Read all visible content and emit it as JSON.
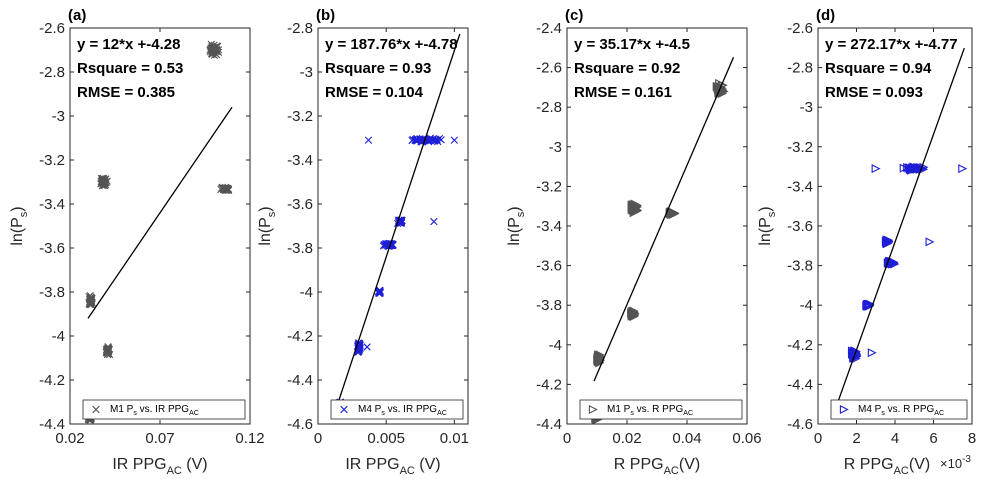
{
  "chart_data": [
    {
      "type": "scatter",
      "panel": "(a)",
      "xlabel": "IR PPG",
      "xlabel_sub": "AC",
      "xlabel_tail": " (V)",
      "ylabel": "ln(P",
      "ylabel_sub": "s",
      "ylabel_tail": ")",
      "xlim": [
        0.02,
        0.12
      ],
      "ylim": [
        -4.4,
        -2.6
      ],
      "xticks": [
        0.02,
        0.07,
        0.12
      ],
      "xtick_labels": [
        "0.02",
        "0.07",
        "0.12"
      ],
      "yticks": [
        -4.4,
        -4.2,
        -4.0,
        -3.8,
        -3.6,
        -3.4,
        -3.2,
        -3.0,
        -2.8,
        -2.6
      ],
      "ytick_labels": [
        "-4.4",
        "-4.2",
        "-4",
        "-3.8",
        "-3.6",
        "-3.4",
        "-3.2",
        "-3",
        "-2.8",
        "-2.6"
      ],
      "annotation": [
        "y = 12*x +-4.28",
        "Rsquare = 0.53",
        "RMSE = 0.385"
      ],
      "fit": {
        "slope": 12,
        "intercept": -4.28,
        "x_range": [
          0.03,
          0.11
        ]
      },
      "marker": "x",
      "color": "#555555",
      "legend": {
        "label": "M1 P",
        "sub": "s",
        "tail": " vs. IR PPG",
        "sub2": "AC",
        "position": "bottom-right"
      },
      "clusters": [
        {
          "x": 0.031,
          "y": -4.37,
          "dx": 0.0012,
          "dy": 0.015
        },
        {
          "x": 0.0315,
          "y": -3.84,
          "dx": 0.0012,
          "dy": 0.03
        },
        {
          "x": 0.0385,
          "y": -3.3,
          "dx": 0.0025,
          "dy": 0.025
        },
        {
          "x": 0.041,
          "y": -4.07,
          "dx": 0.0012,
          "dy": 0.025
        },
        {
          "x": 0.1,
          "y": -2.7,
          "dx": 0.003,
          "dy": 0.04
        },
        {
          "x": 0.106,
          "y": -3.33,
          "dx": 0.003,
          "dy": 0.012
        }
      ]
    },
    {
      "type": "scatter",
      "panel": "(b)",
      "xlabel": "IR PPG",
      "xlabel_sub": "AC",
      "xlabel_tail": " (V)",
      "ylabel": "ln(P",
      "ylabel_sub": "s",
      "ylabel_tail": ")",
      "xlim": [
        0,
        0.011
      ],
      "ylim": [
        -4.6,
        -2.8
      ],
      "xticks": [
        0,
        0.005,
        0.01
      ],
      "xtick_labels": [
        "0",
        "0.005",
        "0.01"
      ],
      "yticks": [
        -4.6,
        -4.4,
        -4.2,
        -4.0,
        -3.8,
        -3.6,
        -3.4,
        -3.2,
        -3.0,
        -2.8
      ],
      "ytick_labels": [
        "-4.6",
        "-4.4",
        "-4.2",
        "-4",
        "-3.8",
        "-3.6",
        "-3.4",
        "-3.2",
        "-3",
        "-2.8"
      ],
      "annotation": [
        "y = 187.76*x +-4.78",
        "Rsquare = 0.93",
        "RMSE = 0.104"
      ],
      "fit": {
        "slope": 187.76,
        "intercept": -4.78,
        "x_range": [
          0.0015,
          0.0104
        ]
      },
      "marker": "x",
      "color": "#1f1fd6",
      "legend": {
        "label": "M4 P",
        "sub": "s",
        "tail": " vs. IR PPG",
        "sub2": "AC",
        "position": "bottom-right"
      },
      "clusters": [
        {
          "x": 0.0016,
          "y": -4.51,
          "dx": 0.0001,
          "dy": 0.012
        },
        {
          "x": 0.003,
          "y": -4.25,
          "dx": 0.00012,
          "dy": 0.03
        },
        {
          "x": 0.0045,
          "y": -4.0,
          "dx": 0.0001,
          "dy": 0.01
        },
        {
          "x": 0.0052,
          "y": -3.785,
          "dx": 0.0005,
          "dy": 0.012
        },
        {
          "x": 0.006,
          "y": -3.68,
          "dx": 0.00025,
          "dy": 0.012
        },
        {
          "x": 0.0078,
          "y": -3.31,
          "dx": 0.0016,
          "dy": 0.012
        }
      ],
      "outliers": [
        [
          0.0036,
          -4.25
        ],
        [
          0.0085,
          -3.68
        ],
        [
          0.0037,
          -3.31
        ],
        [
          0.01,
          -3.31
        ]
      ]
    },
    {
      "type": "scatter",
      "panel": "(c)",
      "xlabel": "R PPG",
      "xlabel_sub": "AC",
      "xlabel_tail": "(V)",
      "ylabel": "ln(P",
      "ylabel_sub": "s",
      "ylabel_tail": ")",
      "xlim": [
        0,
        0.06
      ],
      "ylim": [
        -4.4,
        -2.4
      ],
      "xticks": [
        0,
        0.02,
        0.04,
        0.06
      ],
      "xtick_labels": [
        "0",
        "0.02",
        "0.04",
        "0.06"
      ],
      "yticks": [
        -4.4,
        -4.2,
        -4.0,
        -3.8,
        -3.6,
        -3.4,
        -3.2,
        -3.0,
        -2.8,
        -2.6,
        -2.4
      ],
      "ytick_labels": [
        "-4.4",
        "-4.2",
        "-4",
        "-3.8",
        "-3.6",
        "-3.4",
        "-3.2",
        "-3",
        "-2.8",
        "-2.6",
        "-2.4"
      ],
      "annotation": [
        "y = 35.17*x +-4.5",
        "Rsquare = 0.92",
        "RMSE = 0.161"
      ],
      "fit": {
        "slope": 35.17,
        "intercept": -4.5,
        "x_range": [
          0.009,
          0.0555
        ]
      },
      "marker": "triangle-right",
      "color": "#555555",
      "legend": {
        "label": "M1 P",
        "sub": "s",
        "tail": " vs. R PPG",
        "sub2": "AC",
        "position": "bottom-right"
      },
      "clusters": [
        {
          "x": 0.01,
          "y": -4.37,
          "dx": 0.001,
          "dy": 0.01
        },
        {
          "x": 0.0105,
          "y": -4.07,
          "dx": 0.0008,
          "dy": 0.025
        },
        {
          "x": 0.022,
          "y": -3.84,
          "dx": 0.0008,
          "dy": 0.025
        },
        {
          "x": 0.0225,
          "y": -3.31,
          "dx": 0.0012,
          "dy": 0.03
        },
        {
          "x": 0.035,
          "y": -3.335,
          "dx": 0.0012,
          "dy": 0.01
        },
        {
          "x": 0.051,
          "y": -2.71,
          "dx": 0.0015,
          "dy": 0.035
        }
      ]
    },
    {
      "type": "scatter",
      "panel": "(d)",
      "xlabel": "R PPG",
      "xlabel_sub": "AC",
      "xlabel_tail": "(V)",
      "x_multiplier": "×10",
      "x_multiplier_exp": "-3",
      "ylabel": "ln(P",
      "ylabel_sub": "s",
      "ylabel_tail": ")",
      "xlim": [
        0,
        8
      ],
      "ylim": [
        -4.6,
        -2.6
      ],
      "xticks": [
        0,
        2,
        4,
        6,
        8
      ],
      "xtick_labels": [
        "0",
        "2",
        "4",
        "6",
        "8"
      ],
      "yticks": [
        -4.6,
        -4.4,
        -4.2,
        -4.0,
        -3.8,
        -3.6,
        -3.4,
        -3.2,
        -3.0,
        -2.8,
        -2.6
      ],
      "ytick_labels": [
        "-4.6",
        "-4.4",
        "-4.2",
        "-4",
        "-3.8",
        "-3.6",
        "-3.4",
        "-3.2",
        "-3",
        "-2.8",
        "-2.6"
      ],
      "annotation": [
        "y = 272.17*x +-4.77",
        "Rsquare = 0.94",
        "RMSE = 0.093"
      ],
      "fit": {
        "slope": 272.17,
        "intercept": -4.77,
        "x_range": [
          0.9,
          7.6
        ],
        "x_scale": 0.001
      },
      "marker": "triangle-right",
      "color": "#1f1fd6",
      "legend": {
        "label": "M4 P",
        "sub": "s",
        "tail": " vs. R PPG",
        "sub2": "AC",
        "position": "bottom-right"
      },
      "clusters": [
        {
          "x": 1.0,
          "y": -4.51,
          "dx": 0.08,
          "dy": 0.012
        },
        {
          "x": 1.9,
          "y": -4.25,
          "dx": 0.15,
          "dy": 0.03
        },
        {
          "x": 2.6,
          "y": -4.0,
          "dx": 0.1,
          "dy": 0.01
        },
        {
          "x": 3.8,
          "y": -3.785,
          "dx": 0.25,
          "dy": 0.012
        },
        {
          "x": 3.6,
          "y": -3.68,
          "dx": 0.1,
          "dy": 0.012
        },
        {
          "x": 5.1,
          "y": -3.31,
          "dx": 0.8,
          "dy": 0.012
        }
      ],
      "outliers": [
        [
          2.8,
          -4.24
        ],
        [
          5.8,
          -3.68
        ],
        [
          7.5,
          -3.31
        ],
        [
          3.0,
          -3.31
        ]
      ]
    }
  ]
}
